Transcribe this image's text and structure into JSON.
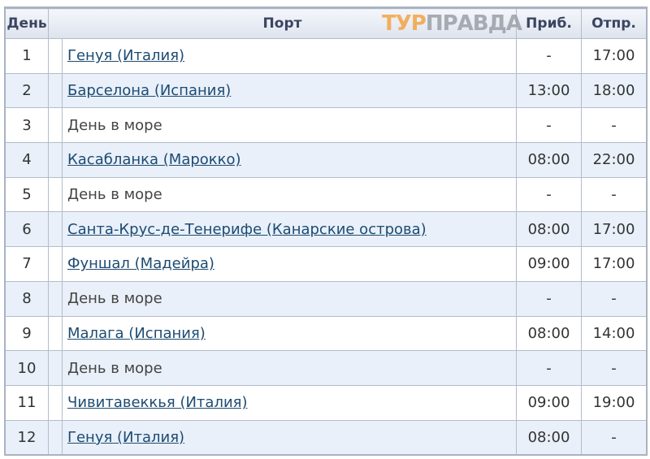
{
  "header": {
    "day": "День",
    "port": "Порт",
    "arrival": "Приб.",
    "departure": "Отпр."
  },
  "watermark": {
    "part1": "ТУР",
    "part2": "ПРАВДА"
  },
  "rows": [
    {
      "day": "1",
      "port": "Генуя (Италия)",
      "link": true,
      "arr": "-",
      "dep": "17:00"
    },
    {
      "day": "2",
      "port": "Барселона (Испания)",
      "link": true,
      "arr": "13:00",
      "dep": "18:00"
    },
    {
      "day": "3",
      "port": "День в море",
      "link": false,
      "arr": "-",
      "dep": "-"
    },
    {
      "day": "4",
      "port": "Касабланка (Марокко)",
      "link": true,
      "arr": "08:00",
      "dep": "22:00"
    },
    {
      "day": "5",
      "port": "День в море",
      "link": false,
      "arr": "-",
      "dep": "-"
    },
    {
      "day": "6",
      "port": "Санта-Крус-де-Тенерифе (Канарские острова)",
      "link": true,
      "arr": "08:00",
      "dep": "17:00"
    },
    {
      "day": "7",
      "port": "Фуншал (Мадейра)",
      "link": true,
      "arr": "09:00",
      "dep": "17:00"
    },
    {
      "day": "8",
      "port": "День в море",
      "link": false,
      "arr": "-",
      "dep": "-"
    },
    {
      "day": "9",
      "port": "Малага (Испания)",
      "link": true,
      "arr": "08:00",
      "dep": "14:00"
    },
    {
      "day": "10",
      "port": "День в море",
      "link": false,
      "arr": "-",
      "dep": "-"
    },
    {
      "day": "11",
      "port": "Чивитавеккья (Италия)",
      "link": true,
      "arr": "09:00",
      "dep": "19:00"
    },
    {
      "day": "12",
      "port": "Генуя (Италия)",
      "link": true,
      "arr": "08:00",
      "dep": "-"
    }
  ]
}
